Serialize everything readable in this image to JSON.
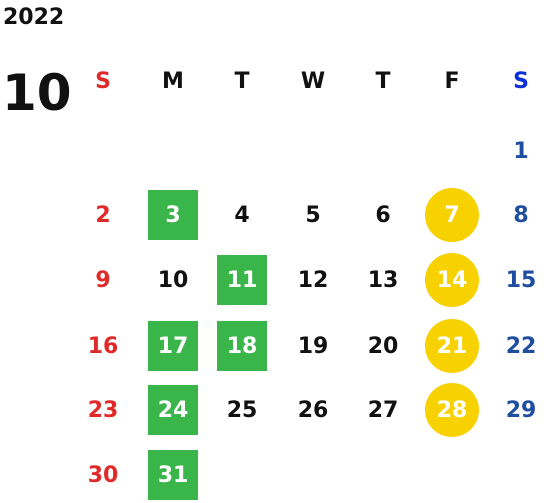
{
  "year": "2022",
  "month": "10",
  "weekdays": [
    "S",
    "M",
    "T",
    "W",
    "T",
    "F",
    "S"
  ],
  "weeks": [
    [
      {
        "d": ""
      },
      {
        "d": ""
      },
      {
        "d": ""
      },
      {
        "d": ""
      },
      {
        "d": ""
      },
      {
        "d": ""
      },
      {
        "d": "1"
      }
    ],
    [
      {
        "d": "2"
      },
      {
        "d": "3",
        "mark": "green"
      },
      {
        "d": "4"
      },
      {
        "d": "5"
      },
      {
        "d": "6"
      },
      {
        "d": "7",
        "mark": "yellow"
      },
      {
        "d": "8"
      }
    ],
    [
      {
        "d": "9"
      },
      {
        "d": "10"
      },
      {
        "d": "11",
        "mark": "green"
      },
      {
        "d": "12"
      },
      {
        "d": "13"
      },
      {
        "d": "14",
        "mark": "yellow"
      },
      {
        "d": "15"
      }
    ],
    [
      {
        "d": "16"
      },
      {
        "d": "17",
        "mark": "green"
      },
      {
        "d": "18",
        "mark": "green"
      },
      {
        "d": "19"
      },
      {
        "d": "20"
      },
      {
        "d": "21",
        "mark": "yellow"
      },
      {
        "d": "22"
      }
    ],
    [
      {
        "d": "23"
      },
      {
        "d": "24",
        "mark": "green"
      },
      {
        "d": "25"
      },
      {
        "d": "26"
      },
      {
        "d": "27"
      },
      {
        "d": "28",
        "mark": "yellow"
      },
      {
        "d": "29"
      }
    ],
    [
      {
        "d": "30"
      },
      {
        "d": "31",
        "mark": "green"
      },
      {
        "d": ""
      },
      {
        "d": ""
      },
      {
        "d": ""
      },
      {
        "d": ""
      },
      {
        "d": ""
      }
    ]
  ],
  "colors": {
    "sunday": "#e02a2a",
    "saturday": "#1f4ea0",
    "green_mark": "#3ab54a",
    "yellow_mark": "#f7d100"
  }
}
